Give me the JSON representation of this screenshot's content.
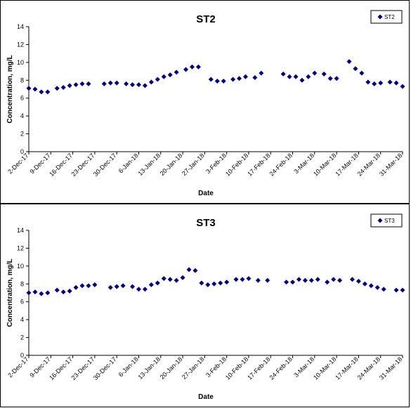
{
  "chart_data": [
    {
      "type": "scatter",
      "title": "ST2",
      "xlabel": "Date",
      "ylabel": "Concentration, mg/L",
      "ylim": [
        0,
        14
      ],
      "yticks": [
        0,
        2,
        4,
        6,
        8,
        10,
        12,
        14
      ],
      "xlim": [
        "2017-12-02",
        "2018-03-31"
      ],
      "xtick_labels": [
        "2-Dec-17",
        "9-Dec-17",
        "16-Dec-17",
        "23-Dec-17",
        "30-Dec-17",
        "6-Jan-18",
        "13-Jan-18",
        "20-Jan-18",
        "27-Jan-18",
        "3-Feb-18",
        "10-Feb-18",
        "17-Feb-18",
        "24-Feb-18",
        "3-Mar-18",
        "10-Mar-18",
        "17-Mar-18",
        "24-Mar-18",
        "31-Mar-18"
      ],
      "xtick_dates": [
        "2017-12-02",
        "2017-12-09",
        "2017-12-16",
        "2017-12-23",
        "2017-12-30",
        "2018-01-06",
        "2018-01-13",
        "2018-01-20",
        "2018-01-27",
        "2018-02-03",
        "2018-02-10",
        "2018-02-17",
        "2018-02-24",
        "2018-03-03",
        "2018-03-10",
        "2018-03-17",
        "2018-03-24",
        "2018-03-31"
      ],
      "grid": false,
      "legend_position": "top-right",
      "marker_color": "#000080",
      "series": [
        {
          "name": "ST2",
          "x": [
            "2017-12-02",
            "2017-12-03",
            "2017-12-04",
            "2017-12-05",
            "2017-12-07",
            "2017-12-08",
            "2017-12-10",
            "2017-12-11",
            "2017-12-12",
            "2017-12-13",
            "2017-12-14",
            "2017-12-15",
            "2017-12-17",
            "2017-12-18",
            "2017-12-19",
            "2017-12-20",
            "2017-12-21",
            "2017-12-22",
            "2017-12-23",
            "2017-12-24",
            "2017-12-26",
            "2017-12-27",
            "2017-12-28",
            "2017-12-29",
            "2017-12-31",
            "2018-01-01",
            "2018-01-02",
            "2018-01-03",
            "2018-01-05",
            "2018-01-06",
            "2018-01-07",
            "2018-01-08",
            "2018-01-09",
            "2018-01-10",
            "2018-01-11",
            "2018-01-13",
            "2018-01-14",
            "2018-01-15",
            "2018-01-16",
            "2018-01-17",
            "2018-01-19",
            "2018-01-20",
            "2018-01-21",
            "2018-01-22",
            "2018-01-23",
            "2018-01-24",
            "2018-01-25",
            "2018-01-26",
            "2018-01-27",
            "2018-01-28",
            "2018-01-29",
            "2018-01-30",
            "2018-02-01",
            "2018-02-02",
            "2018-02-03",
            "2018-02-04",
            "2018-02-05",
            "2018-02-07",
            "2018-02-08",
            "2018-02-09",
            "2018-02-10",
            "2018-02-11",
            "2018-02-12",
            "2018-02-14",
            "2018-02-15",
            "2018-02-16",
            "2018-02-17",
            "2018-02-18",
            "2018-02-20",
            "2018-02-21",
            "2018-02-22",
            "2018-02-23"
          ],
          "y": [
            7.1,
            6.7,
            6.7,
            6.7,
            7.1,
            7.2,
            7.4,
            7.5,
            7.6,
            7.6,
            7.6,
            7.6,
            7.7,
            7.7,
            7.7,
            7.8,
            7.6,
            7.6,
            7.5,
            7.4,
            7.8,
            8.2,
            8.4,
            8.6,
            9.0,
            9.2,
            9.5,
            9.5,
            8.1,
            7.9,
            7.9,
            8.1,
            8.2,
            8.4,
            8.3,
            8.8,
            8.7,
            8.4,
            8.4,
            8.0,
            8.4,
            8.8,
            8.7,
            8.2,
            8.2,
            8.2,
            10.1,
            9.3,
            8.8,
            7.8,
            7.6,
            7.7,
            7.8,
            7.7,
            7.3,
            7.3,
            7.3,
            7.3,
            7.3,
            7.3,
            7.3,
            7.3,
            7.3,
            7.3,
            7.3,
            7.3,
            7.3,
            7.3,
            7.3,
            7.3,
            7.3,
            7.3
          ]
        }
      ]
    },
    {
      "type": "scatter",
      "title": "ST3",
      "xlabel": "Date",
      "ylabel": "Concentration, mg/L",
      "ylim": [
        0,
        14
      ],
      "yticks": [
        0,
        2,
        4,
        6,
        8,
        10,
        12,
        14
      ],
      "xlim": [
        "2017-12-02",
        "2018-03-31"
      ],
      "xtick_labels": [
        "2-Dec-17",
        "9-Dec-17",
        "16-Dec-17",
        "23-Dec-17",
        "30-Dec-17",
        "6-Jan-18",
        "13-Jan-18",
        "20-Jan-18",
        "27-Jan-18",
        "3-Feb-18",
        "10-Feb-18",
        "17-Feb-18",
        "24-Feb-18",
        "3-Mar-18",
        "10-Mar-18",
        "17-Mar-18",
        "24-Mar-18",
        "31-Mar-18"
      ],
      "xtick_dates": [
        "2017-12-02",
        "2017-12-09",
        "2017-12-16",
        "2017-12-23",
        "2017-12-30",
        "2018-01-06",
        "2018-01-13",
        "2018-01-20",
        "2018-01-27",
        "2018-02-03",
        "2018-02-10",
        "2018-02-17",
        "2018-02-24",
        "2018-03-03",
        "2018-03-10",
        "2018-03-17",
        "2018-03-24",
        "2018-03-31"
      ],
      "grid": false,
      "legend_position": "top-right",
      "marker_color": "#000080",
      "series": [
        {
          "name": "ST3",
          "x": [],
          "y": []
        }
      ]
    }
  ]
}
